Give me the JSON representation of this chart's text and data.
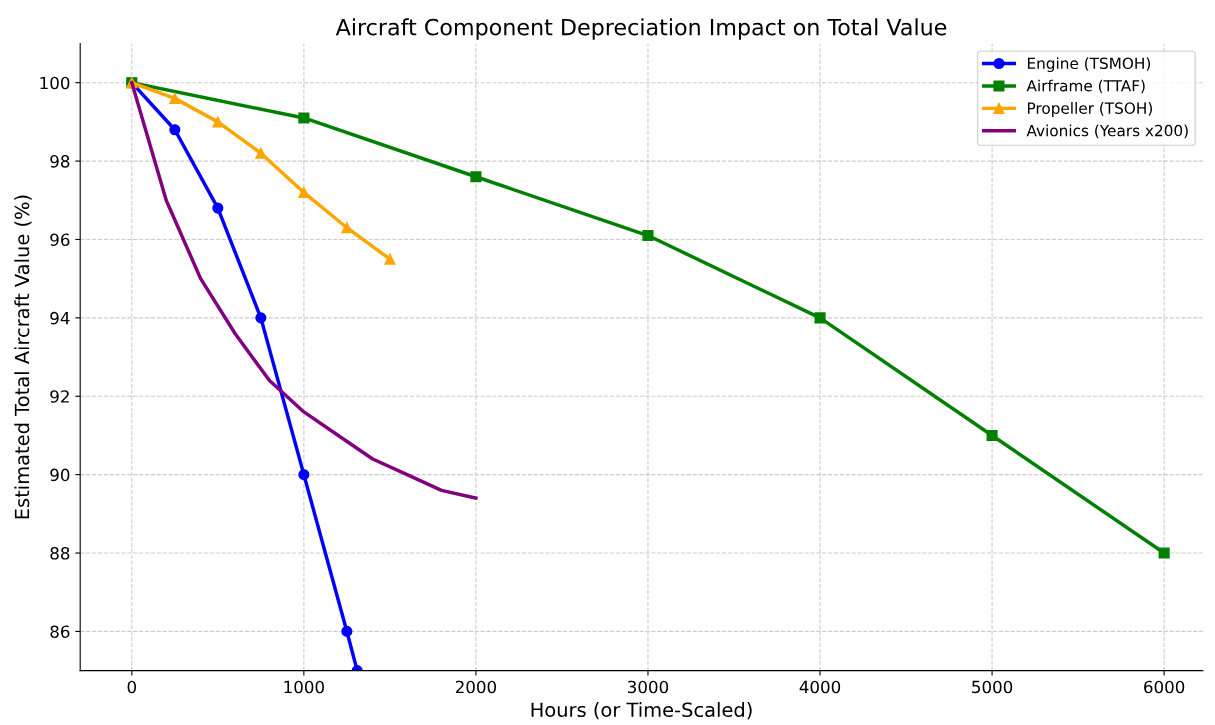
{
  "chart_data": {
    "type": "line",
    "title": "Aircraft Component Depreciation Impact on Total Value",
    "xlabel": "Hours (or Time-Scaled)",
    "ylabel": "Estimated Total Aircraft Value (%)",
    "series": [
      {
        "name": "Engine (TSMOH)",
        "color": "#0000ff",
        "marker": "circle",
        "x": [
          0,
          250,
          500,
          750,
          1000,
          1250,
          1310
        ],
        "values": [
          100,
          98.8,
          96.8,
          94,
          90,
          86,
          85
        ]
      },
      {
        "name": "Airframe (TTAF)",
        "color": "#008000",
        "marker": "square",
        "x": [
          0,
          1000,
          2000,
          3000,
          4000,
          5000,
          6000
        ],
        "values": [
          100,
          99.1,
          97.6,
          96.1,
          94,
          91,
          88
        ]
      },
      {
        "name": "Propeller (TSOH)",
        "color": "#ffa500",
        "marker": "triangle",
        "x": [
          0,
          250,
          500,
          750,
          1000,
          1250,
          1500
        ],
        "values": [
          100,
          99.6,
          99.0,
          98.2,
          97.2,
          96.3,
          95.5
        ]
      },
      {
        "name": "Avionics (Years x200)",
        "color": "#800080",
        "marker": "none",
        "x": [
          0,
          200,
          400,
          600,
          800,
          1000,
          1200,
          1400,
          1600,
          1800,
          2000
        ],
        "values": [
          100,
          97,
          95,
          93.6,
          92.4,
          91.6,
          91.0,
          90.4,
          90.0,
          89.6,
          89.4
        ]
      }
    ],
    "xlim": [
      -300,
      6225
    ],
    "ylim": [
      85,
      101
    ],
    "xticks": [
      0,
      1000,
      2000,
      3000,
      4000,
      5000,
      6000
    ],
    "yticks": [
      86,
      88,
      90,
      92,
      94,
      96,
      98,
      100
    ],
    "grid": true,
    "legend": "top right",
    "line_style": "solid"
  }
}
